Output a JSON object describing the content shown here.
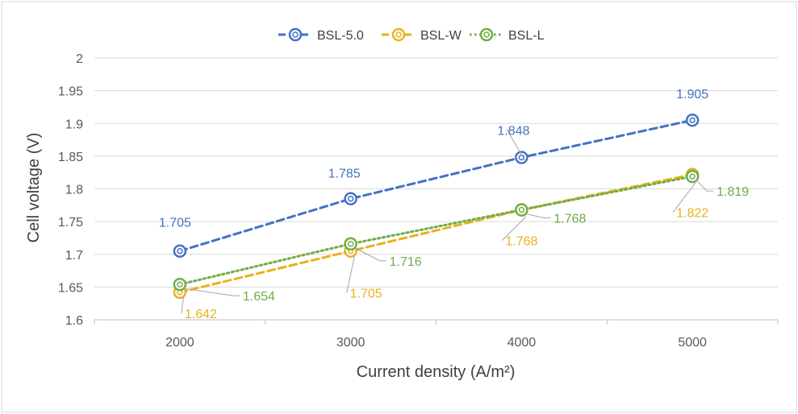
{
  "chart_data": {
    "type": "line",
    "title": "",
    "xlabel": "Current density (A/m²)",
    "ylabel": "Cell voltage (V)",
    "x": [
      2000,
      3000,
      4000,
      5000
    ],
    "x_tick_labels": [
      "2000",
      "3000",
      "4000",
      "5000"
    ],
    "ylim": [
      1.6,
      2.0
    ],
    "y_ticks": [
      1.6,
      1.65,
      1.7,
      1.75,
      1.8,
      1.85,
      1.9,
      1.95,
      2.0
    ],
    "y_tick_labels": [
      "1.6",
      "1.65",
      "1.7",
      "1.75",
      "1.8",
      "1.85",
      "1.9",
      "1.95",
      "2"
    ],
    "grid": true,
    "legend_position": "top-center",
    "series": [
      {
        "name": "BSL-5.0",
        "values": [
          1.705,
          1.785,
          1.848,
          1.905
        ],
        "labels": [
          "1.705",
          "1.785",
          "1.848",
          "1.905"
        ],
        "color": "#4472C4",
        "line_style": "dashed"
      },
      {
        "name": "BSL-W",
        "values": [
          1.642,
          1.705,
          1.768,
          1.822
        ],
        "labels": [
          "1.642",
          "1.705",
          "1.768",
          "1.822"
        ],
        "color": "#E8B21C",
        "line_style": "dashed"
      },
      {
        "name": "BSL-L",
        "values": [
          1.654,
          1.716,
          1.768,
          1.819
        ],
        "labels": [
          "1.654",
          "1.716",
          "1.768",
          "1.819"
        ],
        "color": "#70AD47",
        "line_style": "dotted"
      }
    ]
  }
}
